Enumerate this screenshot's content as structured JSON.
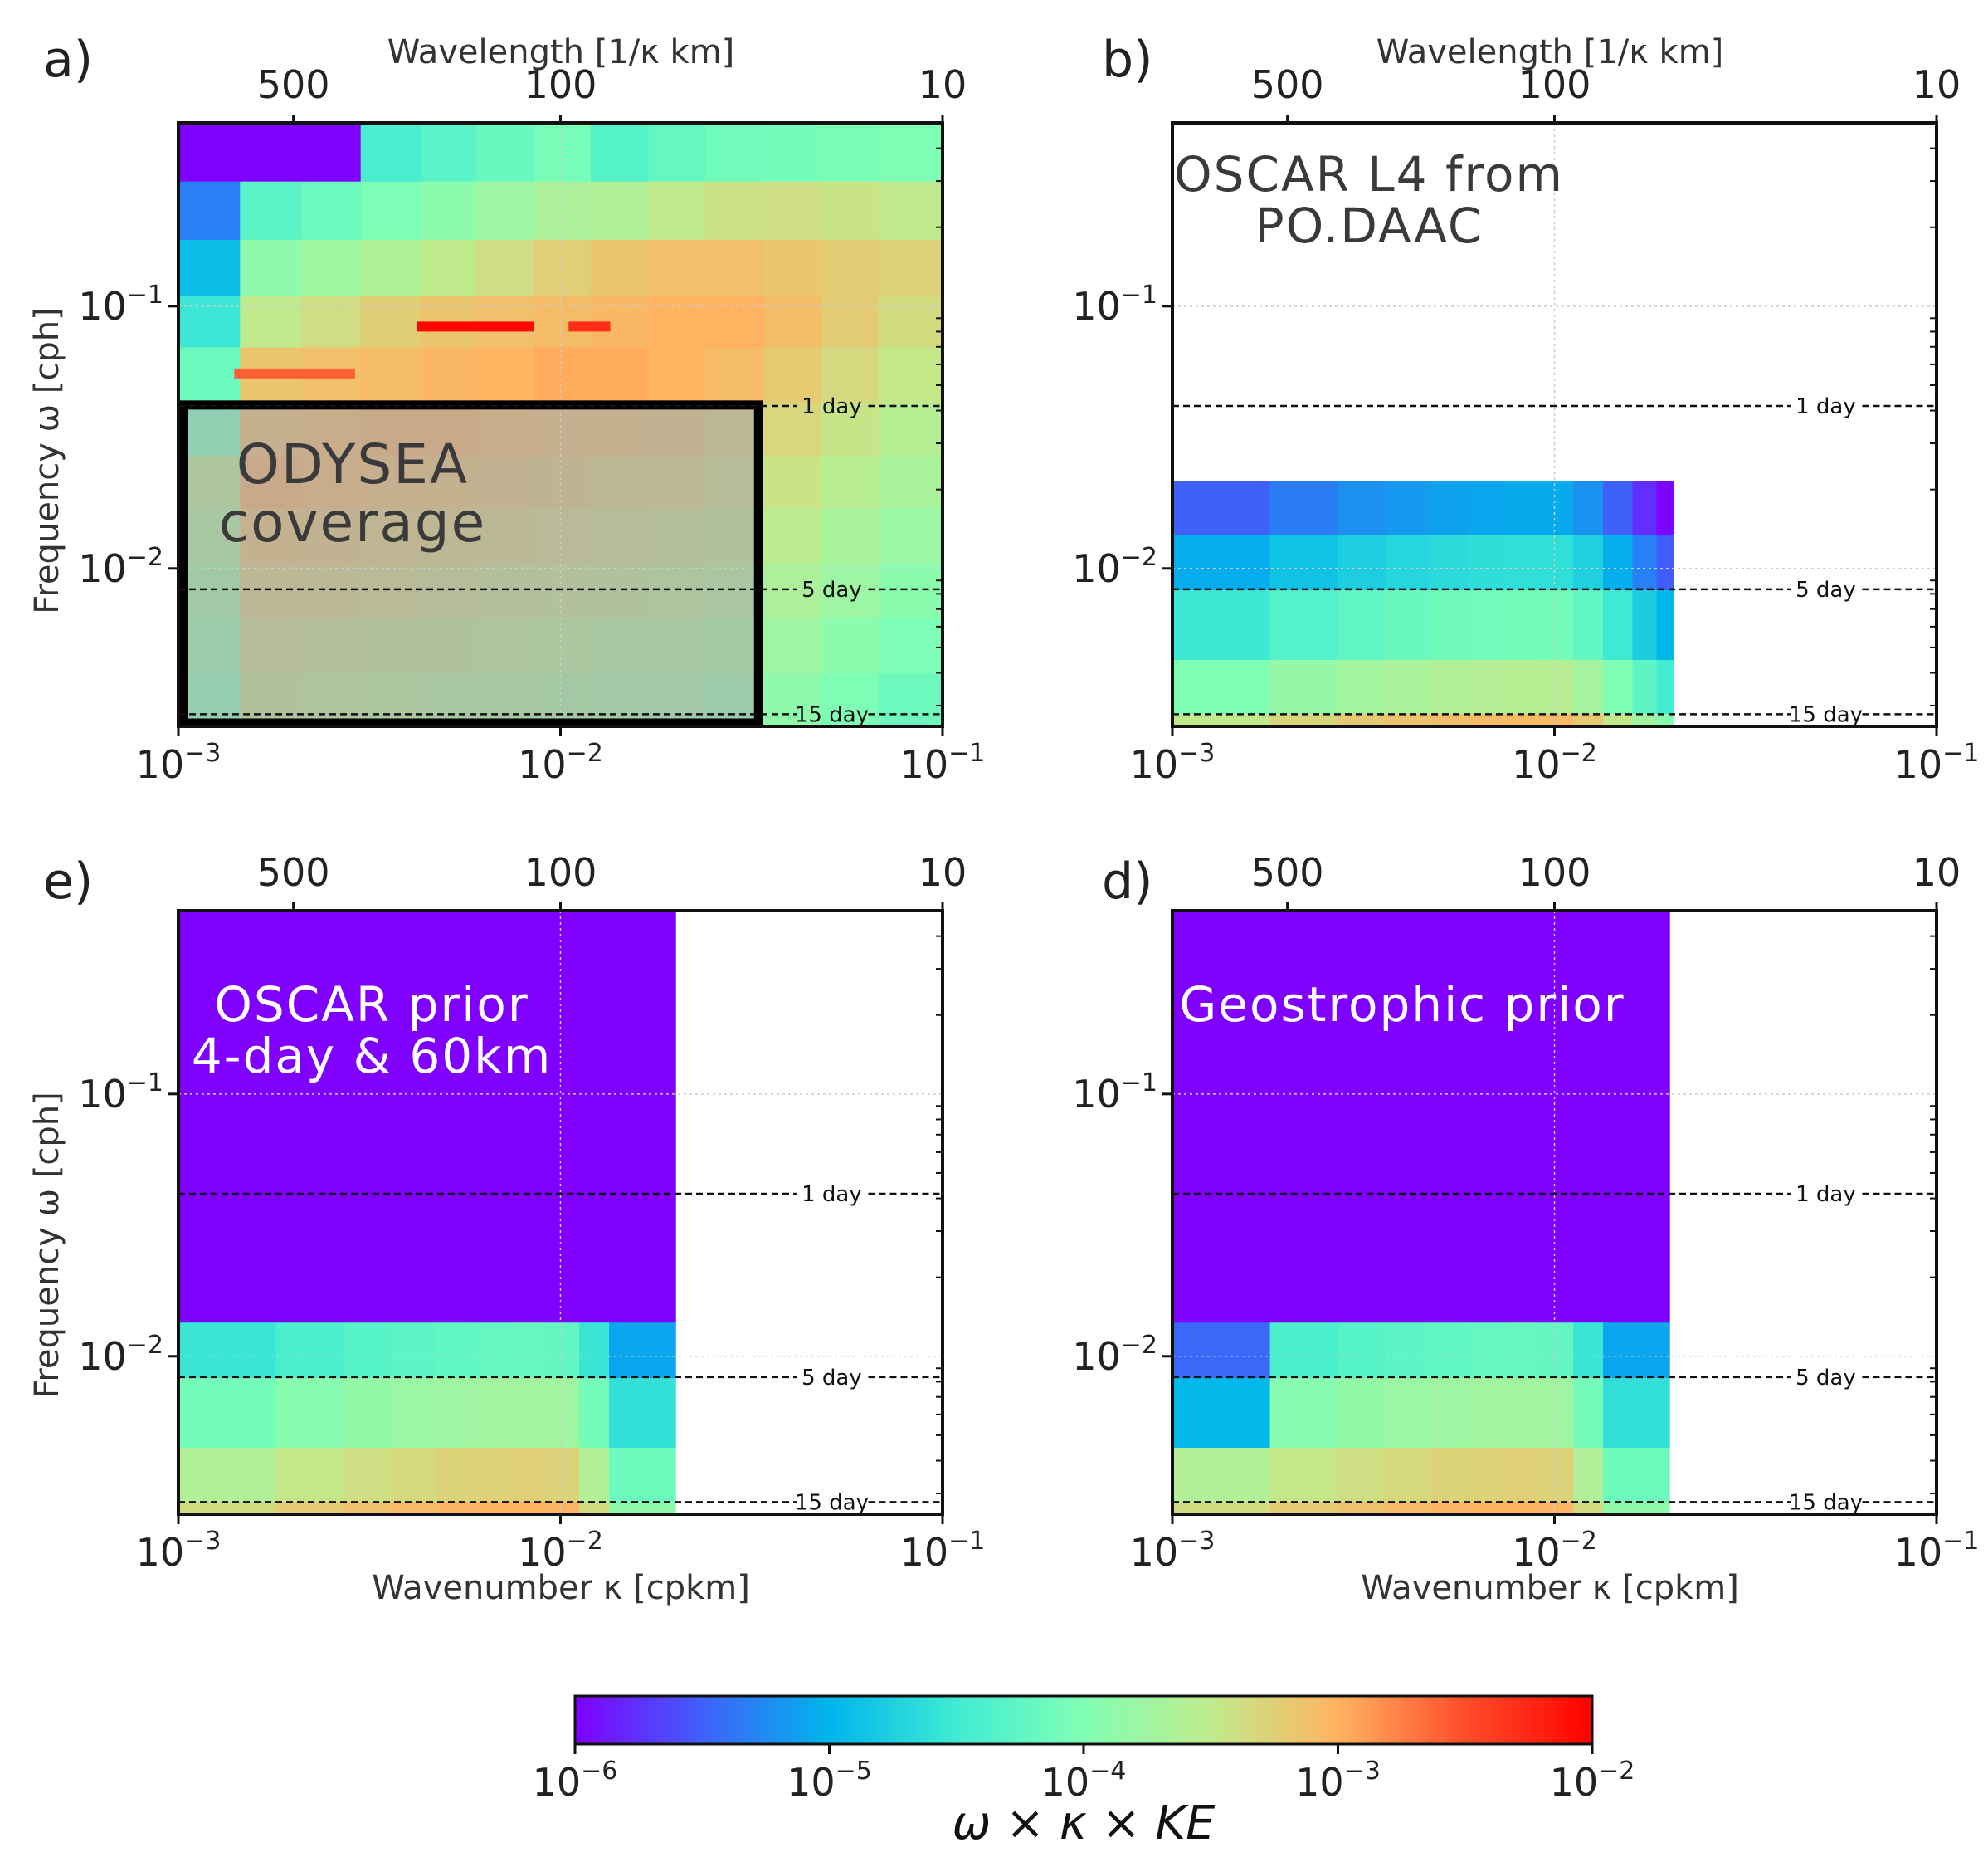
{
  "colors": {
    "colormap": [
      "#7f00ff",
      "#3f61fa",
      "#00b5eb",
      "#40ecd3",
      "#80ffb4",
      "#c0eb8d",
      "#ffb360",
      "#ff4d2a",
      "#ff0000"
    ],
    "axis": "#111111",
    "grid": "#cccccc",
    "guide_line": "#111111"
  },
  "chart_data": [
    {
      "id": "a",
      "panel_label": "a)",
      "type": "heatmap",
      "x_scale": "log",
      "y_scale": "log",
      "xlim": [
        0.001,
        0.1
      ],
      "ylim": [
        0.0025,
        0.5
      ],
      "xlabel": "",
      "ylabel": "Frequency ω [cph]",
      "top_label": "Wavelength [1/κ km]",
      "top_ticks": [
        {
          "km": 500,
          "label": "500"
        },
        {
          "km": 100,
          "label": "100"
        },
        {
          "km": 10,
          "label": "10"
        }
      ],
      "x_ticks": [
        {
          "value": 0.001,
          "base": "10",
          "exp": "−3"
        },
        {
          "value": 0.01,
          "base": "10",
          "exp": "−2"
        },
        {
          "value": 0.1,
          "base": "10",
          "exp": "−1"
        }
      ],
      "y_ticks": [
        {
          "value": 0.1,
          "base": "10",
          "exp": "−1"
        },
        {
          "value": 0.01,
          "base": "10",
          "exp": "−2"
        }
      ],
      "period_lines": [
        {
          "label": "1 day",
          "cph": 0.04167
        },
        {
          "label": "5 day",
          "cph": 0.00833
        },
        {
          "label": "15 day",
          "cph": 0.00278
        }
      ],
      "annotation": {
        "lines": [
          "ODYSEA",
          "coverage"
        ],
        "color": "#3a3a3a"
      },
      "coverage_box": {
        "kx": [
          0.001,
          0.033
        ],
        "w": [
          0.0025,
          0.042
        ]
      },
      "field_model": "full",
      "x_bins": [
        0.001,
        0.00145,
        0.0021,
        0.003,
        0.0043,
        0.006,
        0.0085,
        0.012,
        0.017,
        0.024,
        0.034,
        0.048,
        0.068,
        0.1
      ],
      "y_bins": [
        0.0025,
        0.004,
        0.0065,
        0.0105,
        0.017,
        0.027,
        0.043,
        0.07,
        0.11,
        0.18,
        0.3,
        0.5
      ],
      "ridges": [
        {
          "kx": [
            0.0042,
            0.0085
          ],
          "w": 0.083,
          "log10_value": -2.05
        },
        {
          "kx": [
            0.0105,
            0.0135
          ],
          "w": 0.083,
          "log10_value": -2.3
        },
        {
          "kx": [
            0.0014,
            0.0029
          ],
          "w": 0.055,
          "log10_value": -2.6
        }
      ]
    },
    {
      "id": "b",
      "panel_label": "b)",
      "type": "heatmap",
      "x_scale": "log",
      "y_scale": "log",
      "xlim": [
        0.001,
        0.1
      ],
      "ylim": [
        0.0025,
        0.5
      ],
      "xlabel": "",
      "ylabel": "",
      "top_label": "Wavelength [1/κ km]",
      "top_ticks": [
        {
          "km": 500,
          "label": "500"
        },
        {
          "km": 100,
          "label": "100"
        },
        {
          "km": 10,
          "label": "10"
        }
      ],
      "x_ticks": [
        {
          "value": 0.001,
          "base": "10",
          "exp": "−3"
        },
        {
          "value": 0.01,
          "base": "10",
          "exp": "−2"
        },
        {
          "value": 0.1,
          "base": "10",
          "exp": "−1"
        }
      ],
      "y_ticks": [
        {
          "value": 0.1,
          "base": "10",
          "exp": "−1"
        },
        {
          "value": 0.01,
          "base": "10",
          "exp": "−2"
        }
      ],
      "period_lines": [
        {
          "label": "1 day",
          "cph": 0.04167
        },
        {
          "label": "5 day",
          "cph": 0.00833
        },
        {
          "label": "15 day",
          "cph": 0.00278
        }
      ],
      "annotation": {
        "lines": [
          "OSCAR L4 from",
          "PO.DAAC"
        ],
        "color": "#3a3a3a"
      },
      "data_extent": {
        "kx_max": 0.0205,
        "w_max": 0.0215
      },
      "field_model": "limited",
      "x_bins": [
        0.001,
        0.0018,
        0.0027,
        0.0036,
        0.0047,
        0.006,
        0.0075,
        0.0092,
        0.0112,
        0.0134,
        0.016,
        0.0185,
        0.0205
      ],
      "y_bins": [
        0.0025,
        0.0028,
        0.0045,
        0.0083,
        0.0135,
        0.0215
      ]
    },
    {
      "id": "e",
      "panel_label": "e)",
      "type": "heatmap",
      "x_scale": "log",
      "y_scale": "log",
      "xlim": [
        0.001,
        0.1
      ],
      "ylim": [
        0.0025,
        0.5
      ],
      "xlabel": "Wavenumber κ [cpkm]",
      "ylabel": "Frequency ω [cph]",
      "top_label": "",
      "top_ticks": [
        {
          "km": 500,
          "label": "500"
        },
        {
          "km": 100,
          "label": "100"
        },
        {
          "km": 10,
          "label": "10"
        }
      ],
      "x_ticks": [
        {
          "value": 0.001,
          "base": "10",
          "exp": "−3"
        },
        {
          "value": 0.01,
          "base": "10",
          "exp": "−2"
        },
        {
          "value": 0.1,
          "base": "10",
          "exp": "−1"
        }
      ],
      "y_ticks": [
        {
          "value": 0.1,
          "base": "10",
          "exp": "−1"
        },
        {
          "value": 0.01,
          "base": "10",
          "exp": "−2"
        }
      ],
      "period_lines": [
        {
          "label": "1 day",
          "cph": 0.04167
        },
        {
          "label": "5 day",
          "cph": 0.00833
        },
        {
          "label": "15 day",
          "cph": 0.00278
        }
      ],
      "annotation": {
        "lines": [
          "OSCAR prior",
          "4-day & 60km"
        ],
        "color": "#ffffff"
      },
      "data_extent": {
        "kx_max": 0.02,
        "w_max": 0.5
      },
      "field_model": "prior",
      "x_bins": [
        0.001,
        0.0018,
        0.0027,
        0.0036,
        0.0047,
        0.006,
        0.0075,
        0.0092,
        0.0112,
        0.0134,
        0.02
      ],
      "y_bins": [
        0.0025,
        0.0028,
        0.0045,
        0.0083,
        0.0135,
        0.5
      ]
    },
    {
      "id": "d",
      "panel_label": "d)",
      "type": "heatmap",
      "x_scale": "log",
      "y_scale": "log",
      "xlim": [
        0.001,
        0.1
      ],
      "ylim": [
        0.0025,
        0.5
      ],
      "xlabel": "Wavenumber κ [cpkm]",
      "ylabel": "",
      "top_label": "",
      "top_ticks": [
        {
          "km": 500,
          "label": "500"
        },
        {
          "km": 100,
          "label": "100"
        },
        {
          "km": 10,
          "label": "10"
        }
      ],
      "x_ticks": [
        {
          "value": 0.001,
          "base": "10",
          "exp": "−3"
        },
        {
          "value": 0.01,
          "base": "10",
          "exp": "−2"
        },
        {
          "value": 0.1,
          "base": "10",
          "exp": "−1"
        }
      ],
      "y_ticks": [
        {
          "value": 0.1,
          "base": "10",
          "exp": "−1"
        },
        {
          "value": 0.01,
          "base": "10",
          "exp": "−2"
        }
      ],
      "period_lines": [
        {
          "label": "1 day",
          "cph": 0.04167
        },
        {
          "label": "5 day",
          "cph": 0.00833
        },
        {
          "label": "15 day",
          "cph": 0.00278
        }
      ],
      "annotation": {
        "lines": [
          "Geostrophic prior"
        ],
        "color": "#ffffff"
      },
      "data_extent": {
        "kx_max": 0.02,
        "w_max": 0.5
      },
      "field_model": "prior_geo",
      "x_bins": [
        0.001,
        0.0018,
        0.0027,
        0.0036,
        0.0047,
        0.006,
        0.0075,
        0.0092,
        0.0112,
        0.0134,
        0.02
      ],
      "y_bins": [
        0.0025,
        0.0028,
        0.0045,
        0.0083,
        0.0135,
        0.5
      ]
    }
  ],
  "colorbar": {
    "title": "ω × κ × KE",
    "scale": "log",
    "range": [
      1e-06,
      0.01
    ],
    "ticks": [
      {
        "value": 1e-06,
        "base": "10",
        "exp": "−6"
      },
      {
        "value": 1e-05,
        "base": "10",
        "exp": "−5"
      },
      {
        "value": 0.0001,
        "base": "10",
        "exp": "−4"
      },
      {
        "value": 0.001,
        "base": "10",
        "exp": "−3"
      },
      {
        "value": 0.01,
        "base": "10",
        "exp": "−2"
      }
    ]
  }
}
